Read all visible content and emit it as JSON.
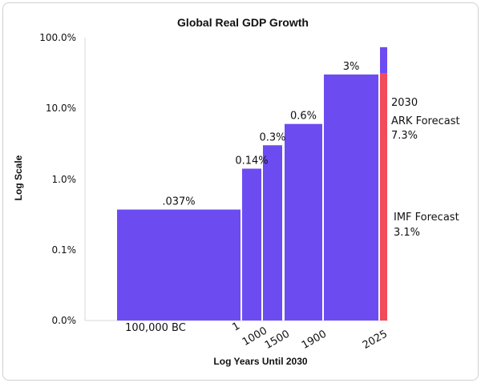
{
  "chart_data": {
    "type": "bar",
    "title": "Global Real GDP Growth",
    "xlabel": "Log Years Until 2030",
    "ylabel": "Log Scale",
    "yscale": "log",
    "y_ticks": [
      "0.0%",
      "0.1%",
      "1.0%",
      "10.0%",
      "100.0%"
    ],
    "x_ticks": [
      "100,000 BC",
      "1",
      "1000",
      "1500",
      "1900",
      "2025"
    ],
    "bars": [
      {
        "label": ".037%",
        "value": 0.037,
        "color": "#6c4cf1"
      },
      {
        "label": "0.14%",
        "value": 0.14,
        "color": "#6c4cf1"
      },
      {
        "label": "0.3%",
        "value": 0.3,
        "color": "#6c4cf1"
      },
      {
        "label": "0.6%",
        "value": 0.6,
        "color": "#6c4cf1"
      },
      {
        "label": "3%",
        "value": 3,
        "color": "#6c4cf1"
      }
    ],
    "forecasts": [
      {
        "name": "IMF Forecast",
        "label": "3.1%",
        "value": 3.1,
        "color": "#f24b5a"
      },
      {
        "name": "ARK Forecast",
        "label": "7.3%",
        "value": 7.3,
        "color": "#6c4cf1",
        "year": "2030"
      }
    ],
    "grid": false
  }
}
